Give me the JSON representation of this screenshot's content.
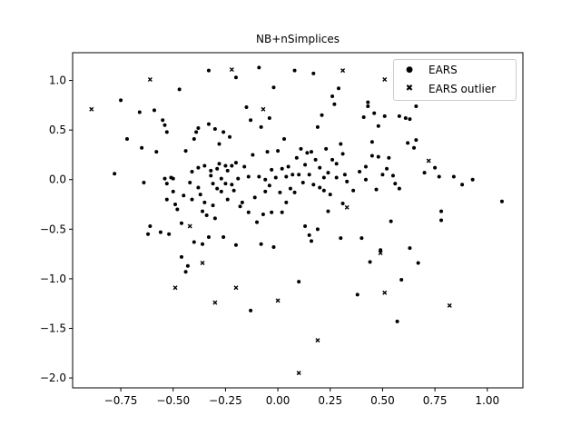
{
  "chart_data": {
    "type": "scatter",
    "title": "NB+nSimplices",
    "xlabel": "",
    "ylabel": "",
    "xlim": [
      -0.98,
      1.17
    ],
    "ylim": [
      -2.1,
      1.28
    ],
    "xticks": [
      -0.75,
      -0.5,
      -0.25,
      0.0,
      0.25,
      0.5,
      0.75,
      1.0
    ],
    "xtick_labels": [
      "−0.75",
      "−0.50",
      "−0.25",
      "0.00",
      "0.25",
      "0.50",
      "0.75",
      "1.00"
    ],
    "yticks": [
      -2.0,
      -1.5,
      -1.0,
      -0.5,
      0.0,
      0.5,
      1.0
    ],
    "ytick_labels": [
      "−2.0",
      "−1.5",
      "−1.0",
      "−0.5",
      "0.0",
      "0.5",
      "1.0"
    ],
    "grid": false,
    "legend_position": "top-right",
    "series": [
      {
        "name": "EARS",
        "marker": "circle",
        "color": "#000000",
        "points": [
          [
            -0.75,
            0.8
          ],
          [
            -0.78,
            0.06
          ],
          [
            -0.72,
            0.41
          ],
          [
            -0.66,
            0.68
          ],
          [
            -0.65,
            0.32
          ],
          [
            -0.64,
            -0.03
          ],
          [
            -0.62,
            -0.55
          ],
          [
            -0.61,
            -0.47
          ],
          [
            -0.59,
            0.7
          ],
          [
            -0.58,
            0.28
          ],
          [
            -0.56,
            -0.53
          ],
          [
            -0.55,
            0.6
          ],
          [
            -0.54,
            0.55
          ],
          [
            -0.53,
            0.48
          ],
          [
            -0.54,
            0.01
          ],
          [
            -0.53,
            -0.04
          ],
          [
            -0.53,
            -0.2
          ],
          [
            -0.52,
            -0.55
          ],
          [
            -0.51,
            0.02
          ],
          [
            -0.5,
            0.01
          ],
          [
            -0.5,
            -0.12
          ],
          [
            -0.49,
            -0.25
          ],
          [
            -0.48,
            -0.3
          ],
          [
            -0.47,
            0.91
          ],
          [
            -0.46,
            -0.44
          ],
          [
            -0.46,
            -0.78
          ],
          [
            -0.45,
            -0.16
          ],
          [
            -0.44,
            -0.93
          ],
          [
            -0.44,
            0.29
          ],
          [
            -0.43,
            -0.87
          ],
          [
            -0.42,
            -0.03
          ],
          [
            -0.41,
            0.08
          ],
          [
            -0.41,
            -0.2
          ],
          [
            -0.4,
            0.41
          ],
          [
            -0.4,
            -0.63
          ],
          [
            -0.39,
            0.48
          ],
          [
            -0.38,
            0.52
          ],
          [
            -0.38,
            0.12
          ],
          [
            -0.38,
            -0.08
          ],
          [
            -0.37,
            -0.15
          ],
          [
            -0.36,
            -0.32
          ],
          [
            -0.36,
            -0.65
          ],
          [
            -0.35,
            0.14
          ],
          [
            -0.35,
            -0.23
          ],
          [
            -0.34,
            -0.36
          ],
          [
            -0.33,
            -0.58
          ],
          [
            -0.33,
            0.56
          ],
          [
            -0.33,
            1.1
          ],
          [
            -0.32,
            0.09
          ],
          [
            -0.32,
            0.04
          ],
          [
            -0.31,
            -0.04
          ],
          [
            -0.31,
            -0.26
          ],
          [
            -0.3,
            0.51
          ],
          [
            -0.3,
            -0.39
          ],
          [
            -0.29,
            0.11
          ],
          [
            -0.29,
            -0.09
          ],
          [
            -0.28,
            0.36
          ],
          [
            -0.28,
            0.16
          ],
          [
            -0.27,
            0.01
          ],
          [
            -0.27,
            -0.12
          ],
          [
            -0.26,
            -0.58
          ],
          [
            -0.26,
            0.48
          ],
          [
            -0.25,
            0.14
          ],
          [
            -0.25,
            -0.04
          ],
          [
            -0.24,
            -0.2
          ],
          [
            -0.24,
            0.09
          ],
          [
            -0.23,
            0.43
          ],
          [
            -0.22,
            0.14
          ],
          [
            -0.22,
            -0.05
          ],
          [
            -0.21,
            -0.11
          ],
          [
            -0.2,
            -0.66
          ],
          [
            -0.2,
            0.17
          ],
          [
            -0.2,
            1.03
          ],
          [
            -0.19,
            0.01
          ],
          [
            -0.18,
            -0.27
          ],
          [
            -0.17,
            -0.23
          ],
          [
            -0.16,
            0.13
          ],
          [
            -0.15,
            0.73
          ],
          [
            -0.14,
            0.03
          ],
          [
            -0.14,
            -0.33
          ],
          [
            -0.13,
            -1.32
          ],
          [
            -0.13,
            0.6
          ],
          [
            -0.12,
            0.25
          ],
          [
            -0.11,
            -0.18
          ],
          [
            -0.1,
            -0.43
          ],
          [
            -0.09,
            0.03
          ],
          [
            -0.09,
            1.13
          ],
          [
            -0.08,
            -0.65
          ],
          [
            -0.08,
            0.53
          ],
          [
            -0.07,
            -0.35
          ],
          [
            -0.06,
            0.0
          ],
          [
            -0.06,
            -0.12
          ],
          [
            -0.05,
            0.28
          ],
          [
            -0.04,
            0.62
          ],
          [
            -0.04,
            -0.06
          ],
          [
            -0.03,
            0.1
          ],
          [
            -0.03,
            -0.33
          ],
          [
            -0.02,
            0.93
          ],
          [
            -0.02,
            -0.68
          ],
          [
            -0.01,
            0.02
          ],
          [
            0.0,
            0.29
          ],
          [
            0.01,
            -0.13
          ],
          [
            0.02,
            0.11
          ],
          [
            0.02,
            -0.33
          ],
          [
            0.03,
            0.41
          ],
          [
            0.04,
            0.03
          ],
          [
            0.04,
            -0.23
          ],
          [
            0.05,
            0.13
          ],
          [
            0.06,
            -0.09
          ],
          [
            0.07,
            0.05
          ],
          [
            0.08,
            1.1
          ],
          [
            0.08,
            -0.13
          ],
          [
            0.09,
            0.22
          ],
          [
            0.1,
            -1.03
          ],
          [
            0.1,
            0.05
          ],
          [
            0.11,
            0.31
          ],
          [
            0.12,
            -0.03
          ],
          [
            0.13,
            -0.47
          ],
          [
            0.13,
            0.15
          ],
          [
            0.14,
            0.27
          ],
          [
            0.15,
            -0.56
          ],
          [
            0.15,
            0.05
          ],
          [
            0.16,
            -0.62
          ],
          [
            0.16,
            0.28
          ],
          [
            0.17,
            1.07
          ],
          [
            0.17,
            -0.05
          ],
          [
            0.18,
            0.2
          ],
          [
            0.19,
            -0.5
          ],
          [
            0.19,
            0.53
          ],
          [
            0.2,
            -0.08
          ],
          [
            0.2,
            0.12
          ],
          [
            0.21,
            0.65
          ],
          [
            0.22,
            0.02
          ],
          [
            0.22,
            -0.11
          ],
          [
            0.23,
            0.31
          ],
          [
            0.24,
            -0.32
          ],
          [
            0.24,
            0.07
          ],
          [
            0.25,
            -0.15
          ],
          [
            0.26,
            0.84
          ],
          [
            0.26,
            0.2
          ],
          [
            0.27,
            0.76
          ],
          [
            0.28,
            0.02
          ],
          [
            0.28,
            0.16
          ],
          [
            0.29,
            0.92
          ],
          [
            0.3,
            0.36
          ],
          [
            0.3,
            -0.59
          ],
          [
            0.31,
            -0.24
          ],
          [
            0.31,
            0.26
          ],
          [
            0.32,
            0.05
          ],
          [
            0.33,
            -0.02
          ],
          [
            0.36,
            -0.11
          ],
          [
            0.38,
            -1.16
          ],
          [
            0.39,
            0.08
          ],
          [
            0.4,
            -0.59
          ],
          [
            0.41,
            0.63
          ],
          [
            0.42,
            0.13
          ],
          [
            0.42,
            0.0
          ],
          [
            0.43,
            0.78
          ],
          [
            0.43,
            0.74
          ],
          [
            0.44,
            -0.83
          ],
          [
            0.45,
            0.38
          ],
          [
            0.45,
            0.24
          ],
          [
            0.46,
            0.67
          ],
          [
            0.47,
            -0.1
          ],
          [
            0.48,
            0.54
          ],
          [
            0.48,
            0.23
          ],
          [
            0.49,
            -0.71
          ],
          [
            0.5,
            0.05
          ],
          [
            0.51,
            0.64
          ],
          [
            0.52,
            0.11
          ],
          [
            0.53,
            0.22
          ],
          [
            0.54,
            -0.42
          ],
          [
            0.55,
            0.04
          ],
          [
            0.56,
            -0.04
          ],
          [
            0.57,
            -1.43
          ],
          [
            0.58,
            0.64
          ],
          [
            0.58,
            -0.09
          ],
          [
            0.59,
            -1.01
          ],
          [
            0.61,
            0.62
          ],
          [
            0.62,
            0.37
          ],
          [
            0.63,
            -0.69
          ],
          [
            0.63,
            0.61
          ],
          [
            0.65,
            0.32
          ],
          [
            0.66,
            0.74
          ],
          [
            0.66,
            0.4
          ],
          [
            0.67,
            -0.84
          ],
          [
            0.7,
            0.07
          ],
          [
            0.75,
            0.12
          ],
          [
            0.77,
            0.03
          ],
          [
            0.78,
            -0.41
          ],
          [
            0.78,
            -0.32
          ],
          [
            0.84,
            0.03
          ],
          [
            0.88,
            -0.05
          ],
          [
            0.93,
            0.0
          ],
          [
            1.07,
            -0.22
          ]
        ]
      },
      {
        "name": "EARS outlier",
        "marker": "x",
        "color": "#000000",
        "points": [
          [
            -0.89,
            0.71
          ],
          [
            -0.61,
            1.01
          ],
          [
            -0.49,
            -1.09
          ],
          [
            -0.42,
            -0.47
          ],
          [
            -0.36,
            -0.84
          ],
          [
            -0.3,
            -1.24
          ],
          [
            -0.22,
            1.11
          ],
          [
            -0.2,
            -1.09
          ],
          [
            -0.07,
            0.71
          ],
          [
            0.0,
            -1.22
          ],
          [
            0.1,
            -1.95
          ],
          [
            0.19,
            -1.62
          ],
          [
            0.31,
            1.1
          ],
          [
            0.33,
            -0.28
          ],
          [
            0.49,
            -0.74
          ],
          [
            0.51,
            -1.14
          ],
          [
            0.51,
            1.01
          ],
          [
            0.72,
            0.19
          ],
          [
            0.82,
            -1.27
          ]
        ]
      }
    ]
  }
}
